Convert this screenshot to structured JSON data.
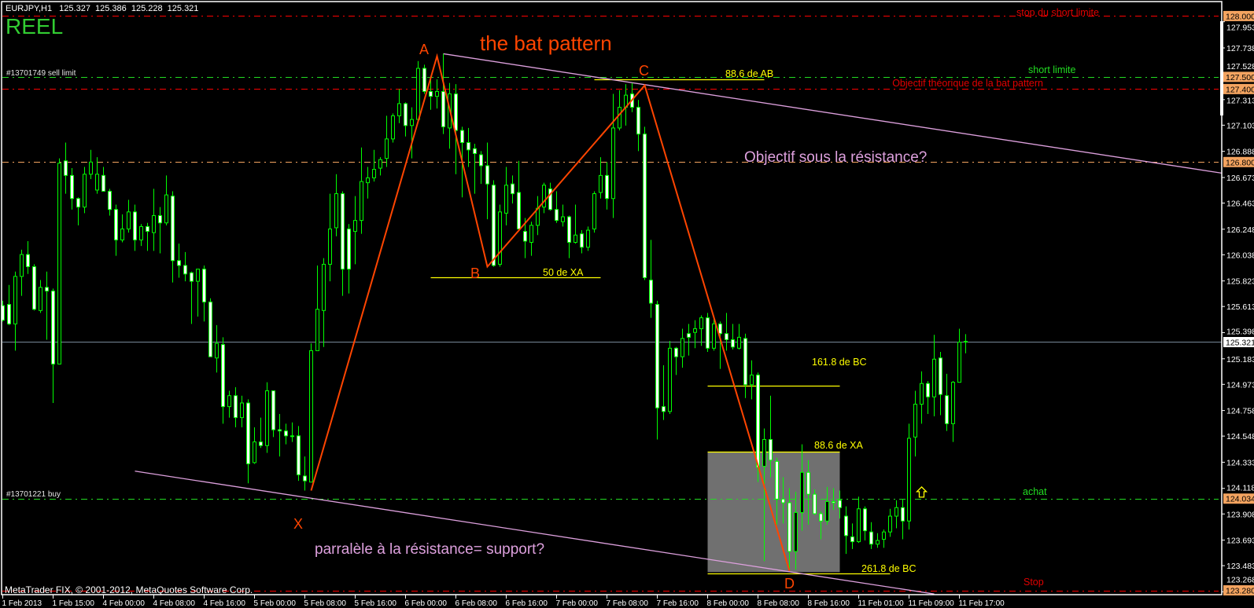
{
  "header": {
    "symbol": "EURJPY,H1",
    "open": "125.327",
    "high": "125.386",
    "low": "125.228",
    "close": "125.321"
  },
  "account_label": "REEL",
  "copyright": "MetaTrader FIX, © 2001-2012, MetaQuotes Software Corp.",
  "chart_data": {
    "type": "candlestick",
    "symbol": "EURJPY",
    "timeframe": "H1",
    "ylim": [
      123.26,
      128.05
    ],
    "grid": false,
    "colors": {
      "background": "#000000",
      "candle_outline": "#00ff00",
      "bull_body": "#000000",
      "bear_body": "#ffffff",
      "pattern": "#ff4500",
      "trendline": "#dda0dd",
      "fib": "#ffff00",
      "zone": "#707070",
      "last_price_line": "#778899",
      "badge": "#f4a460"
    },
    "last_price": "125.321",
    "price_ticks": [
      "127.953",
      "127.738",
      "127.528",
      "127.313",
      "127.103",
      "126.888",
      "126.673",
      "126.463",
      "126.248",
      "126.038",
      "125.823",
      "125.613",
      "125.398",
      "125.183",
      "124.973",
      "124.758",
      "124.548",
      "124.333",
      "124.118",
      "123.908",
      "123.693",
      "123.483",
      "123.268"
    ],
    "time_labels": [
      {
        "bar": 0,
        "label": "1 Feb 2013"
      },
      {
        "bar": 8,
        "label": "1 Feb 15:00"
      },
      {
        "bar": 16,
        "label": "4 Feb 00:00"
      },
      {
        "bar": 24,
        "label": "4 Feb 08:00"
      },
      {
        "bar": 32,
        "label": "4 Feb 16:00"
      },
      {
        "bar": 40,
        "label": "5 Feb 00:00"
      },
      {
        "bar": 48,
        "label": "5 Feb 08:00"
      },
      {
        "bar": 56,
        "label": "5 Feb 16:00"
      },
      {
        "bar": 64,
        "label": "6 Feb 00:00"
      },
      {
        "bar": 72,
        "label": "6 Feb 08:00"
      },
      {
        "bar": 80,
        "label": "6 Feb 16:00"
      },
      {
        "bar": 88,
        "label": "7 Feb 00:00"
      },
      {
        "bar": 96,
        "label": "7 Feb 08:00"
      },
      {
        "bar": 104,
        "label": "7 Feb 16:00"
      },
      {
        "bar": 112,
        "label": "8 Feb 00:00"
      },
      {
        "bar": 120,
        "label": "8 Feb 08:00"
      },
      {
        "bar": 128,
        "label": "8 Feb 16:00"
      },
      {
        "bar": 136,
        "label": "11 Feb 01:00"
      },
      {
        "bar": 144,
        "label": "11 Feb 09:00"
      },
      {
        "bar": 152,
        "label": "11 Feb 17:00"
      }
    ],
    "candles": [
      [
        125.62,
        125.66,
        125.49,
        125.5
      ],
      [
        125.63,
        125.79,
        125.46,
        125.47
      ],
      [
        125.47,
        125.9,
        125.25,
        125.86
      ],
      [
        125.86,
        126.08,
        125.7,
        126.04
      ],
      [
        126.04,
        126.15,
        125.88,
        125.94
      ],
      [
        125.94,
        125.96,
        125.58,
        125.59
      ],
      [
        125.58,
        125.83,
        125.56,
        125.77
      ],
      [
        125.77,
        125.9,
        125.34,
        125.74
      ],
      [
        125.74,
        125.76,
        124.82,
        125.14
      ],
      [
        125.14,
        126.83,
        125.14,
        126.79
      ],
      [
        126.81,
        126.96,
        126.54,
        126.69
      ],
      [
        126.69,
        126.75,
        126.41,
        126.5
      ],
      [
        126.5,
        126.51,
        126.28,
        126.43
      ],
      [
        126.43,
        126.76,
        126.38,
        126.7
      ],
      [
        126.7,
        126.9,
        126.66,
        126.8
      ],
      [
        126.57,
        126.84,
        126.54,
        126.7
      ],
      [
        126.69,
        126.76,
        126.56,
        126.56
      ],
      [
        126.56,
        126.58,
        126.36,
        126.41
      ],
      [
        126.41,
        126.45,
        126.03,
        126.16
      ],
      [
        126.16,
        126.37,
        126.14,
        126.25
      ],
      [
        126.25,
        126.49,
        126.22,
        126.39
      ],
      [
        126.39,
        126.45,
        126.07,
        126.16
      ],
      [
        126.16,
        126.29,
        126.11,
        126.27
      ],
      [
        126.27,
        126.3,
        126.07,
        126.23
      ],
      [
        126.22,
        126.58,
        126.07,
        126.36
      ],
      [
        126.36,
        126.43,
        126.05,
        126.3
      ],
      [
        126.3,
        126.69,
        126.28,
        126.53
      ],
      [
        126.52,
        126.56,
        125.81,
        125.99
      ],
      [
        125.99,
        126.13,
        125.85,
        125.95
      ],
      [
        125.95,
        126.06,
        125.82,
        125.88
      ],
      [
        125.89,
        125.9,
        125.47,
        125.82
      ],
      [
        125.82,
        125.92,
        125.53,
        125.92
      ],
      [
        125.92,
        125.95,
        125.49,
        125.65
      ],
      [
        125.65,
        125.68,
        125.2,
        125.2
      ],
      [
        125.19,
        125.46,
        125.07,
        125.31
      ],
      [
        125.3,
        125.36,
        124.65,
        124.79
      ],
      [
        124.79,
        124.92,
        124.7,
        124.88
      ],
      [
        124.88,
        124.95,
        124.62,
        124.7
      ],
      [
        124.7,
        124.88,
        124.62,
        124.82
      ],
      [
        124.82,
        124.85,
        124.16,
        124.32
      ],
      [
        124.33,
        124.62,
        124.32,
        124.5
      ],
      [
        124.5,
        124.7,
        124.45,
        124.47
      ],
      [
        124.47,
        124.99,
        124.41,
        124.92
      ],
      [
        124.92,
        124.92,
        124.54,
        124.6
      ],
      [
        124.6,
        124.73,
        124.38,
        124.59
      ],
      [
        124.59,
        124.65,
        124.48,
        124.55
      ],
      [
        124.55,
        124.66,
        124.5,
        124.55
      ],
      [
        124.55,
        124.63,
        124.18,
        124.23
      ],
      [
        124.22,
        124.38,
        124.1,
        124.18
      ],
      [
        124.17,
        125.31,
        124.17,
        125.25
      ],
      [
        125.25,
        125.95,
        125.25,
        125.59
      ],
      [
        125.58,
        126.01,
        125.28,
        125.96
      ],
      [
        125.96,
        126.54,
        125.82,
        126.25
      ],
      [
        126.26,
        126.7,
        126.19,
        126.54
      ],
      [
        126.54,
        126.56,
        125.7,
        125.92
      ],
      [
        126.25,
        126.29,
        125.72,
        125.92
      ],
      [
        126.23,
        126.52,
        125.96,
        126.32
      ],
      [
        126.32,
        126.92,
        126.21,
        126.64
      ],
      [
        126.63,
        126.76,
        126.5,
        126.67
      ],
      [
        126.67,
        126.9,
        126.64,
        126.74
      ],
      [
        126.75,
        126.84,
        126.69,
        126.82
      ],
      [
        126.83,
        127.18,
        126.76,
        126.99
      ],
      [
        126.99,
        127.2,
        126.96,
        127.18
      ],
      [
        127.18,
        127.4,
        127.12,
        127.28
      ],
      [
        127.28,
        127.29,
        127.01,
        127.1
      ],
      [
        127.1,
        127.25,
        126.83,
        127.15
      ],
      [
        127.15,
        127.63,
        127.15,
        127.57
      ],
      [
        127.57,
        127.6,
        127.36,
        127.38
      ],
      [
        127.38,
        127.49,
        127.23,
        127.34
      ],
      [
        127.34,
        127.48,
        127.24,
        127.38
      ],
      [
        127.38,
        127.69,
        127.03,
        127.09
      ],
      [
        127.08,
        127.45,
        126.91,
        127.36
      ],
      [
        127.36,
        127.44,
        126.7,
        127.06
      ],
      [
        127.06,
        127.09,
        126.51,
        126.96
      ],
      [
        126.96,
        127.08,
        126.76,
        126.9
      ],
      [
        126.91,
        126.95,
        126.54,
        126.87
      ],
      [
        126.86,
        126.89,
        126.62,
        126.77
      ],
      [
        126.77,
        126.96,
        126.33,
        126.62
      ],
      [
        126.61,
        126.65,
        125.94,
        125.95
      ],
      [
        125.96,
        126.45,
        125.94,
        126.39
      ],
      [
        126.38,
        126.76,
        126.28,
        126.61
      ],
      [
        126.62,
        126.69,
        126.46,
        126.54
      ],
      [
        126.55,
        126.81,
        126.23,
        126.25
      ],
      [
        126.23,
        126.34,
        126.01,
        126.15
      ],
      [
        126.14,
        126.31,
        126.03,
        126.28
      ],
      [
        126.28,
        126.52,
        126.2,
        126.42
      ],
      [
        126.43,
        126.63,
        126.38,
        126.61
      ],
      [
        126.58,
        126.63,
        126.4,
        126.41
      ],
      [
        126.41,
        126.56,
        126.3,
        126.32
      ],
      [
        126.31,
        126.45,
        126.27,
        126.35
      ],
      [
        126.35,
        126.36,
        126.01,
        126.14
      ],
      [
        126.14,
        126.45,
        126.13,
        126.2
      ],
      [
        126.21,
        126.24,
        126.05,
        126.1
      ],
      [
        126.1,
        126.27,
        126.07,
        126.24
      ],
      [
        126.25,
        126.56,
        126.22,
        126.54
      ],
      [
        126.55,
        126.84,
        126.5,
        126.69
      ],
      [
        126.69,
        126.8,
        126.41,
        126.5
      ],
      [
        126.5,
        127.36,
        126.34,
        127.08
      ],
      [
        127.08,
        127.39,
        127.06,
        127.25
      ],
      [
        127.25,
        127.44,
        127.1,
        127.35
      ],
      [
        127.36,
        127.45,
        127.21,
        127.25
      ],
      [
        127.25,
        127.31,
        126.89,
        127.03
      ],
      [
        127.03,
        127.09,
        125.83,
        125.85
      ],
      [
        125.83,
        126.16,
        125.52,
        125.64
      ],
      [
        125.63,
        125.66,
        124.52,
        124.78
      ],
      [
        124.79,
        125.13,
        124.68,
        124.75
      ],
      [
        124.75,
        125.33,
        124.73,
        125.27
      ],
      [
        125.27,
        125.28,
        125.05,
        125.2
      ],
      [
        125.2,
        125.43,
        125.11,
        125.35
      ],
      [
        125.39,
        125.47,
        125.21,
        125.36
      ],
      [
        125.4,
        125.5,
        125.27,
        125.43
      ],
      [
        125.43,
        125.54,
        125.29,
        125.52
      ],
      [
        125.52,
        125.56,
        125.24,
        125.27
      ],
      [
        125.27,
        125.52,
        125.25,
        125.47
      ],
      [
        125.47,
        125.49,
        125.1,
        125.39
      ],
      [
        125.39,
        125.56,
        125.25,
        125.34
      ],
      [
        125.34,
        125.47,
        125.26,
        125.28
      ],
      [
        125.27,
        125.47,
        125.26,
        125.36
      ],
      [
        125.35,
        125.39,
        124.86,
        124.97
      ],
      [
        124.97,
        125.17,
        124.85,
        125.05
      ],
      [
        125.05,
        125.07,
        124.17,
        124.29
      ],
      [
        124.3,
        124.61,
        123.52,
        124.52
      ],
      [
        124.52,
        124.88,
        124.21,
        124.35
      ],
      [
        124.34,
        124.37,
        123.82,
        124.03
      ],
      [
        124.03,
        124.21,
        123.83,
        124.0
      ],
      [
        124.0,
        124.12,
        123.46,
        123.6
      ],
      [
        123.6,
        124.09,
        123.45,
        123.92
      ],
      [
        123.92,
        124.48,
        123.77,
        124.25
      ],
      [
        124.25,
        124.35,
        123.82,
        124.07
      ],
      [
        124.07,
        124.11,
        123.9,
        123.91
      ],
      [
        123.91,
        123.93,
        123.7,
        123.85
      ],
      [
        123.85,
        124.13,
        123.82,
        124.01
      ],
      [
        124.01,
        124.12,
        123.94,
        124.0
      ],
      [
        124.02,
        124.1,
        123.87,
        123.96
      ],
      [
        123.89,
        123.97,
        123.58,
        123.73
      ],
      [
        123.72,
        123.83,
        123.62,
        123.68
      ],
      [
        123.68,
        124.05,
        123.67,
        123.95
      ],
      [
        123.95,
        123.97,
        123.69,
        123.77
      ],
      [
        123.76,
        123.84,
        123.62,
        123.66
      ],
      [
        123.66,
        123.75,
        123.63,
        123.69
      ],
      [
        123.7,
        123.78,
        123.63,
        123.76
      ],
      [
        123.76,
        123.95,
        123.72,
        123.89
      ],
      [
        123.89,
        124.02,
        123.79,
        123.96
      ],
      [
        123.96,
        124.03,
        123.7,
        123.85
      ],
      [
        123.85,
        124.65,
        123.78,
        124.53
      ],
      [
        124.54,
        124.92,
        124.38,
        124.81
      ],
      [
        124.81,
        125.08,
        124.65,
        124.98
      ],
      [
        124.98,
        125.0,
        124.73,
        124.87
      ],
      [
        124.87,
        125.38,
        124.71,
        125.18
      ],
      [
        125.19,
        125.24,
        124.72,
        124.89
      ],
      [
        124.88,
        125.06,
        124.59,
        124.65
      ],
      [
        124.65,
        125.0,
        124.5,
        124.99
      ],
      [
        124.99,
        125.43,
        124.99,
        125.32
      ],
      [
        125.327,
        125.386,
        125.228,
        125.321
      ]
    ],
    "levels": [
      {
        "price": 128.0,
        "badge": "128.000",
        "color": "#ff0000",
        "label": "stop du short limite"
      },
      {
        "price": 127.5,
        "badge": "127.500",
        "color": "#22dd22",
        "label": "short limite"
      },
      {
        "price": 127.4,
        "badge": "127.400",
        "color": "#ff0000",
        "label": "Objectif théorique de la bat pattern"
      },
      {
        "price": 126.8,
        "badge": "126.800",
        "color": "#f4a460",
        "label": "Objectif sous la résistance?"
      },
      {
        "price": 124.034,
        "badge": "124.034",
        "color": "#22dd22",
        "label": "achat"
      },
      {
        "price": 123.28,
        "badge": "123.280",
        "color": "#ff0000",
        "label": "Stop"
      }
    ],
    "orders": [
      {
        "label": "#13701749 sell limit",
        "price": 127.5
      },
      {
        "label": "#13701221 buy",
        "price": 124.034
      }
    ],
    "pattern": {
      "title": "the bat pattern",
      "points": [
        {
          "name": "X",
          "bar": 49,
          "price": 124.1
        },
        {
          "name": "A",
          "bar": 69,
          "price": 127.67
        },
        {
          "name": "B",
          "bar": 77,
          "price": 125.94
        },
        {
          "name": "C",
          "bar": 102,
          "price": 127.43
        },
        {
          "name": "D",
          "bar": 125,
          "price": 123.44
        }
      ]
    },
    "trendlines": [
      {
        "name": "resistance",
        "from": {
          "bar": 70,
          "price": 127.69
        },
        "to": {
          "bar": 186,
          "price": 126.77
        },
        "ray": true
      },
      {
        "name": "support",
        "label": "parralèle à  la résistance= support?",
        "from": {
          "bar": 21,
          "price": 124.26
        },
        "to": {
          "bar": 148,
          "price": 123.25
        },
        "ray": false
      }
    ],
    "fib_lines": [
      {
        "label": "88.6 de AB",
        "price": 127.48,
        "from_bar": 94,
        "to_bar": 121
      },
      {
        "label": "50 de XA",
        "price": 125.85,
        "from_bar": 68,
        "to_bar": 95
      },
      {
        "label": "161.8 de BC",
        "price": 124.96,
        "from_bar": 112,
        "to_bar": 133
      },
      {
        "label": "88.6 de XA",
        "price": 124.42,
        "from_bar": 112,
        "to_bar": 133
      },
      {
        "label": "261.8 de BC",
        "price": 123.42,
        "from_bar": 112,
        "to_bar": 141
      }
    ],
    "zone": {
      "from_bar": 112,
      "to_bar": 133,
      "top": 124.42,
      "bottom": 123.43
    },
    "arrow": {
      "bar": 146,
      "price": 124.13,
      "direction": "up",
      "color": "#ffff00"
    }
  }
}
